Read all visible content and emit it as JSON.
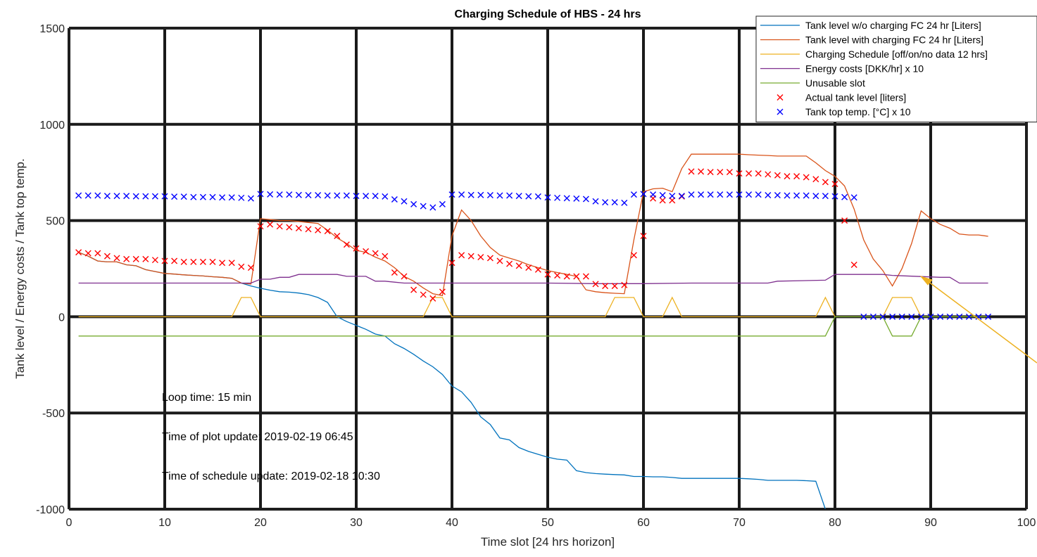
{
  "chart_data": {
    "type": "line",
    "title": "Charging Schedule of HBS - 24 hrs",
    "xlabel": "Time slot [24 hrs horizon]",
    "ylabel": "Tank level / Energy costs / Tank top temp.",
    "xlim": [
      0,
      100
    ],
    "ylim": [
      -1000,
      1500
    ],
    "xticks": [
      "0",
      "10",
      "20",
      "30",
      "40",
      "50",
      "60",
      "70",
      "80",
      "90",
      "100"
    ],
    "yticks": [
      "-1000",
      "-500",
      "0",
      "500",
      "1000",
      "1500"
    ],
    "grid": true,
    "legend_position": "top-right",
    "annotations": [
      "Loop time: 15 min",
      "Time of plot update: 2019-02-19 06:45",
      "Time of schedule update: 2019-02-18 10:30"
    ],
    "series": [
      {
        "name": "Tank level w/o charging FC 24 hr [Liters]",
        "kind": "line",
        "color": "#0072BD",
        "x": [
          1,
          2,
          3,
          4,
          5,
          6,
          7,
          8,
          9,
          10,
          11,
          12,
          13,
          14,
          15,
          16,
          17,
          18,
          19,
          20,
          21,
          22,
          23,
          24,
          25,
          26,
          27,
          28,
          29,
          30,
          31,
          32,
          33,
          34,
          35,
          36,
          37,
          38,
          39,
          40,
          41,
          42,
          43,
          44,
          45,
          46,
          47,
          48,
          49,
          50,
          51,
          52,
          53,
          54,
          55,
          56,
          57,
          58,
          59,
          60,
          61,
          62,
          63,
          64,
          65,
          66,
          67,
          68,
          69,
          70,
          71,
          72,
          73,
          74,
          75,
          76,
          77,
          78,
          79
        ],
        "y": [
          335,
          315,
          290,
          285,
          285,
          270,
          265,
          245,
          235,
          225,
          222,
          218,
          215,
          212,
          208,
          205,
          200,
          175,
          160,
          148,
          138,
          130,
          128,
          123,
          115,
          100,
          75,
          0,
          -25,
          -45,
          -65,
          -90,
          -100,
          -140,
          -165,
          -195,
          -230,
          -260,
          -300,
          -360,
          -390,
          -445,
          -520,
          -560,
          -630,
          -640,
          -680,
          -700,
          -715,
          -730,
          -740,
          -745,
          -800,
          -810,
          -815,
          -818,
          -820,
          -822,
          -830,
          -830,
          -832,
          -832,
          -835,
          -840,
          -840,
          -840,
          -840,
          -840,
          -840,
          -840,
          -842,
          -845,
          -850,
          -850,
          -850,
          -850,
          -852,
          -855,
          -1000
        ]
      },
      {
        "name": "Tank level with charging FC 24 hr [Liters]",
        "kind": "line",
        "color": "#D95319",
        "x": [
          1,
          2,
          3,
          4,
          5,
          6,
          7,
          8,
          9,
          10,
          11,
          12,
          13,
          14,
          15,
          16,
          17,
          18,
          19,
          20,
          21,
          22,
          23,
          24,
          25,
          26,
          27,
          28,
          29,
          30,
          31,
          32,
          33,
          34,
          35,
          36,
          37,
          38,
          39,
          40,
          41,
          42,
          43,
          44,
          45,
          46,
          47,
          48,
          49,
          50,
          51,
          52,
          53,
          54,
          55,
          56,
          57,
          58,
          59,
          60,
          61,
          62,
          63,
          64,
          65,
          66,
          67,
          68,
          69,
          70,
          71,
          72,
          73,
          74,
          75,
          76,
          77,
          78,
          79,
          80,
          81,
          82,
          83,
          84,
          85,
          86,
          87,
          88,
          89,
          90,
          91,
          92,
          93,
          94,
          95,
          96
        ],
        "y": [
          335,
          315,
          290,
          285,
          285,
          270,
          265,
          245,
          235,
          225,
          222,
          218,
          215,
          212,
          208,
          205,
          200,
          175,
          170,
          510,
          505,
          500,
          500,
          495,
          490,
          485,
          450,
          410,
          380,
          345,
          335,
          310,
          290,
          255,
          210,
          185,
          150,
          120,
          110,
          420,
          555,
          500,
          420,
          360,
          320,
          305,
          290,
          270,
          255,
          240,
          230,
          220,
          210,
          140,
          130,
          125,
          122,
          120,
          400,
          650,
          665,
          668,
          650,
          770,
          845,
          845,
          845,
          845,
          845,
          845,
          842,
          840,
          838,
          835,
          835,
          835,
          835,
          800,
          760,
          730,
          680,
          560,
          400,
          300,
          240,
          160,
          250,
          380,
          550,
          510,
          480,
          460,
          430,
          425,
          425,
          418
        ]
      },
      {
        "name": "Charging Schedule [off/on/no data 12 hrs]",
        "kind": "line",
        "color": "#EDB120",
        "x": [
          1,
          17,
          18,
          19,
          20,
          37,
          38,
          39,
          40,
          56,
          57,
          58,
          59,
          60,
          61,
          62,
          63,
          64,
          78,
          79,
          80,
          85,
          86,
          87,
          88,
          89,
          90,
          96
        ],
        "y": [
          0,
          0,
          100,
          100,
          0,
          0,
          100,
          100,
          0,
          0,
          100,
          100,
          100,
          0,
          0,
          0,
          100,
          0,
          0,
          100,
          0,
          0,
          100,
          100,
          100,
          0,
          0,
          0
        ]
      },
      {
        "name": "Energy costs [DKK/hr] x 10",
        "kind": "line",
        "color": "#7E2F8E",
        "x": [
          1,
          18,
          19,
          20,
          21,
          22,
          23,
          24,
          27,
          28,
          29,
          31,
          32,
          33,
          34,
          35,
          45,
          50,
          55,
          60,
          65,
          70,
          73,
          74,
          79,
          80,
          81,
          85,
          86,
          91,
          92,
          93,
          96
        ],
        "y": [
          175,
          175,
          175,
          195,
          195,
          205,
          205,
          220,
          220,
          220,
          210,
          210,
          185,
          185,
          180,
          175,
          175,
          175,
          172,
          172,
          175,
          175,
          175,
          185,
          190,
          220,
          220,
          220,
          215,
          205,
          205,
          175,
          175
        ]
      },
      {
        "name": "Unusable slot",
        "kind": "line",
        "color": "#77AC30",
        "x": [
          1,
          79,
          80,
          85,
          86,
          88,
          89,
          96
        ],
        "y": [
          -100,
          -100,
          0,
          0,
          -100,
          -100,
          0,
          0
        ]
      },
      {
        "name": "Actual tank level [liters]",
        "kind": "scatter",
        "marker": "x",
        "color": "#FF0000",
        "x": [
          1,
          2,
          3,
          4,
          5,
          6,
          7,
          8,
          9,
          10,
          11,
          12,
          13,
          14,
          15,
          16,
          17,
          18,
          19,
          20,
          21,
          22,
          23,
          24,
          25,
          26,
          27,
          28,
          29,
          30,
          31,
          32,
          33,
          34,
          35,
          36,
          37,
          38,
          39,
          40,
          41,
          42,
          43,
          44,
          45,
          46,
          47,
          48,
          49,
          50,
          51,
          52,
          53,
          54,
          55,
          56,
          57,
          58,
          59,
          60,
          61,
          62,
          63,
          64,
          65,
          66,
          67,
          68,
          69,
          70,
          71,
          72,
          73,
          74,
          75,
          76,
          77,
          78,
          79,
          80,
          81,
          82
        ],
        "y": [
          335,
          330,
          330,
          315,
          305,
          300,
          300,
          300,
          295,
          290,
          290,
          285,
          285,
          285,
          285,
          280,
          280,
          260,
          255,
          470,
          480,
          470,
          465,
          460,
          455,
          450,
          445,
          420,
          375,
          355,
          340,
          330,
          315,
          230,
          210,
          140,
          115,
          95,
          130,
          280,
          320,
          315,
          310,
          305,
          290,
          275,
          265,
          255,
          245,
          220,
          215,
          210,
          210,
          210,
          170,
          160,
          160,
          165,
          320,
          420,
          615,
          605,
          605,
          625,
          755,
          755,
          752,
          752,
          752,
          745,
          745,
          745,
          740,
          735,
          730,
          730,
          725,
          715,
          700,
          690,
          500,
          270
        ]
      },
      {
        "name": "Tank top temp. [°C] x 10",
        "kind": "scatter",
        "marker": "x",
        "color": "#0000FF",
        "x": [
          1,
          2,
          3,
          4,
          5,
          6,
          7,
          8,
          9,
          10,
          11,
          12,
          13,
          14,
          15,
          16,
          17,
          18,
          19,
          20,
          21,
          22,
          23,
          24,
          25,
          26,
          27,
          28,
          29,
          30,
          31,
          32,
          33,
          34,
          35,
          36,
          37,
          38,
          39,
          40,
          41,
          42,
          43,
          44,
          45,
          46,
          47,
          48,
          49,
          50,
          51,
          52,
          53,
          54,
          55,
          56,
          57,
          58,
          59,
          60,
          61,
          62,
          63,
          64,
          65,
          66,
          67,
          68,
          69,
          70,
          71,
          72,
          73,
          74,
          75,
          76,
          77,
          78,
          79,
          80,
          81,
          82,
          83,
          84,
          85,
          86,
          87,
          88,
          89,
          90,
          91,
          92,
          93,
          94,
          95,
          96
        ],
        "y": [
          630,
          630,
          630,
          628,
          628,
          628,
          626,
          626,
          626,
          626,
          624,
          624,
          622,
          622,
          622,
          620,
          620,
          618,
          615,
          638,
          636,
          635,
          635,
          633,
          632,
          632,
          630,
          630,
          630,
          628,
          628,
          628,
          625,
          610,
          600,
          585,
          575,
          568,
          585,
          635,
          635,
          633,
          633,
          632,
          630,
          630,
          628,
          626,
          625,
          620,
          618,
          616,
          614,
          612,
          600,
          595,
          595,
          592,
          635,
          638,
          635,
          632,
          628,
          628,
          635,
          635,
          635,
          635,
          635,
          635,
          635,
          635,
          632,
          632,
          630,
          630,
          630,
          628,
          628,
          626,
          622,
          620,
          0,
          0,
          0,
          0,
          0,
          0,
          0,
          0,
          0,
          0,
          0,
          0,
          0,
          0
        ]
      }
    ]
  }
}
